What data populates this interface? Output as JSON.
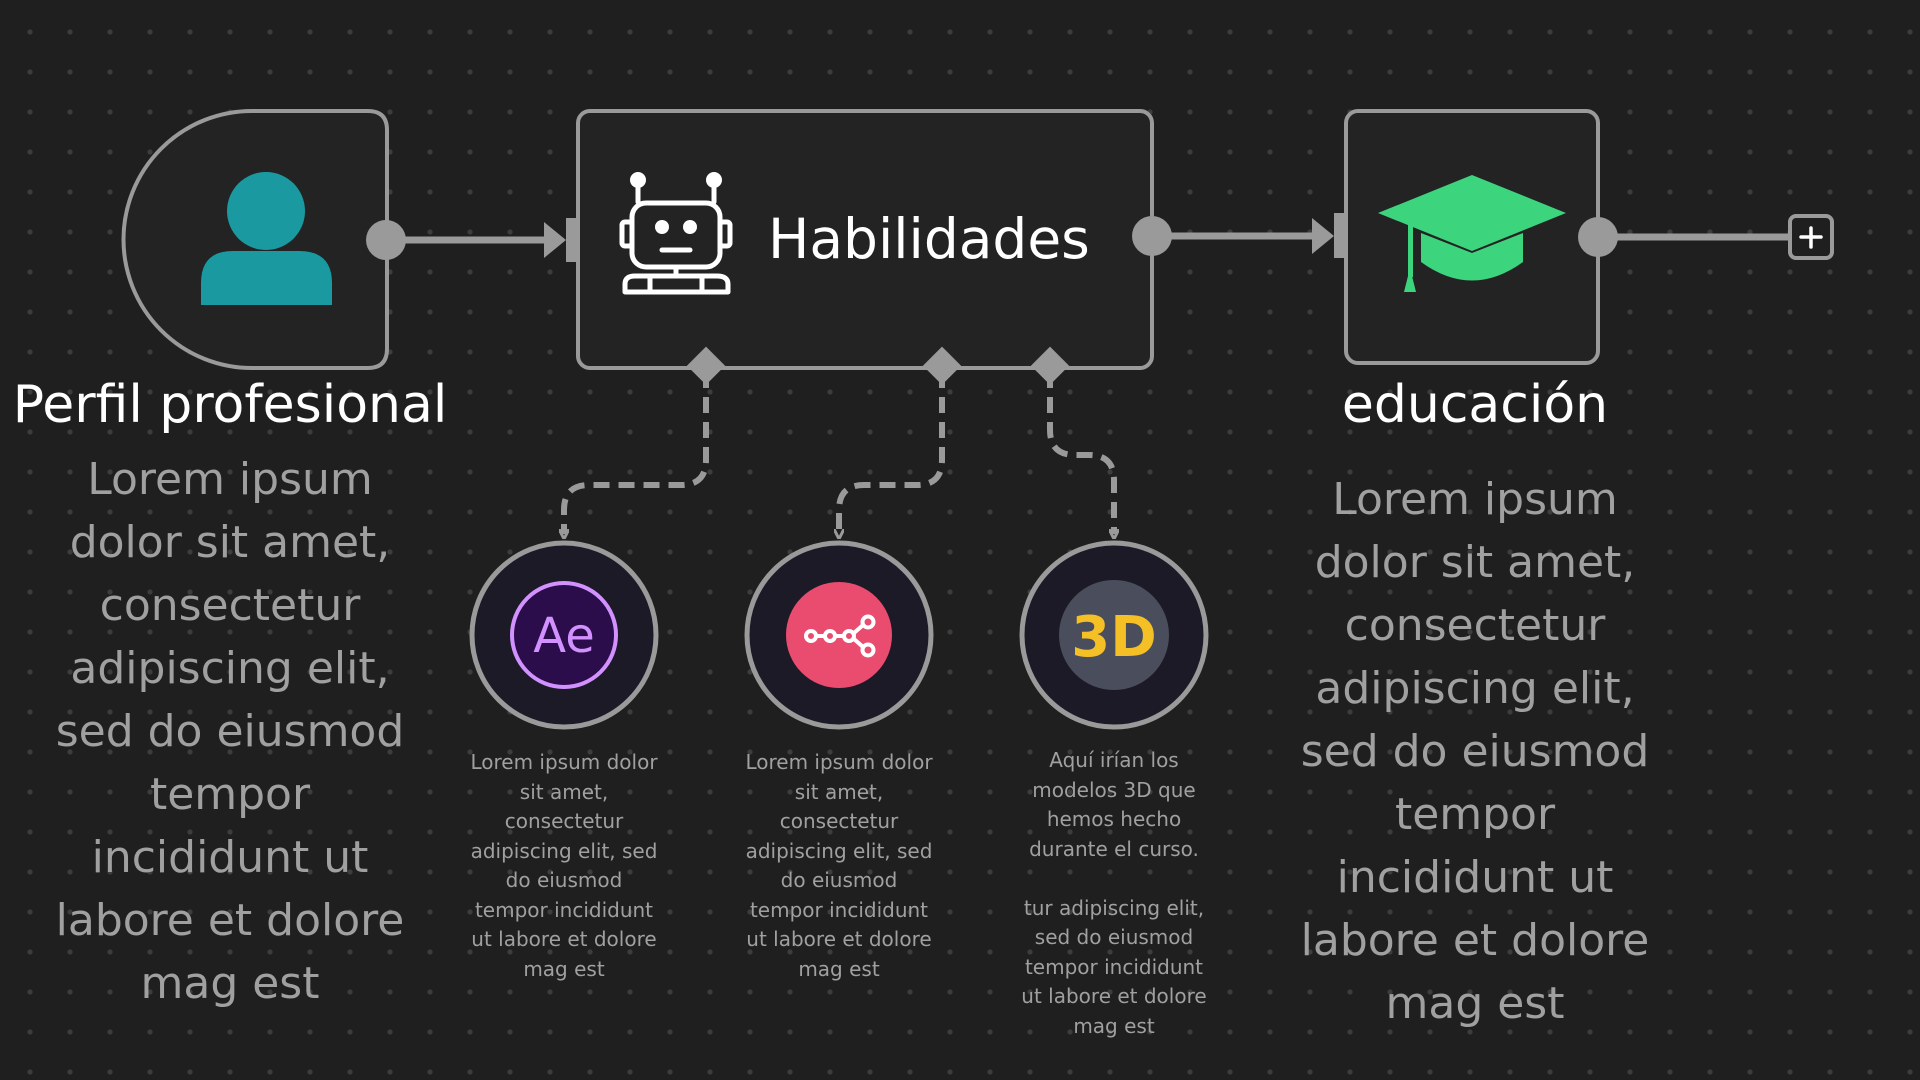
{
  "nodes": {
    "perfil": {
      "title": "Perfil profesional",
      "description": "Lorem ipsum dolor sit amet, consectetur adipiscing elit, sed do eiusmod tempor incididunt ut labore et dolore mag est",
      "icon": "user-icon",
      "icon_color": "#1a9aa0"
    },
    "habilidades": {
      "title": "Habilidades",
      "icon": "robot-icon",
      "icon_color": "#ffffff"
    },
    "educacion": {
      "title": "educación",
      "description": "Lorem ipsum dolor sit amet, consectetur adipiscing elit, sed do eiusmod tempor incididunt ut labore et dolore mag est",
      "icon": "graduation-cap-icon",
      "icon_color": "#3dd47e"
    }
  },
  "skills": [
    {
      "icon": "after-effects-icon",
      "icon_text": "Ae",
      "icon_color": "#d291ff",
      "icon_bg": "#2a0d4a",
      "description": "Lorem ipsum dolor sit amet, consectetur adipiscing elit, sed do eiusmod tempor incididunt ut labore et dolore mag est"
    },
    {
      "icon": "workflow-icon",
      "icon_color": "#e94c6f",
      "description": "Lorem ipsum dolor sit amet, consectetur adipiscing elit, sed do eiusmod tempor incididunt ut labore et dolore mag est"
    },
    {
      "icon": "3d-icon",
      "icon_text": "3D",
      "icon_color": "#f4c025",
      "icon_bg": "#4a4d5c",
      "description": "Aquí irían los modelos 3D que hemos hecho durante el curso.\n\ntur adipiscing elit, sed do eiusmod tempor incididunt ut labore et dolore mag est"
    }
  ],
  "colors": {
    "background": "#1f1f1f",
    "node_fill": "#232323",
    "node_border": "#9a9a9a",
    "connector": "#9a9a9a",
    "circle_fill": "#1c1a26",
    "text": "#ffffff",
    "muted_text": "#a0a0a0"
  },
  "add_button": {
    "icon": "plus-icon"
  }
}
